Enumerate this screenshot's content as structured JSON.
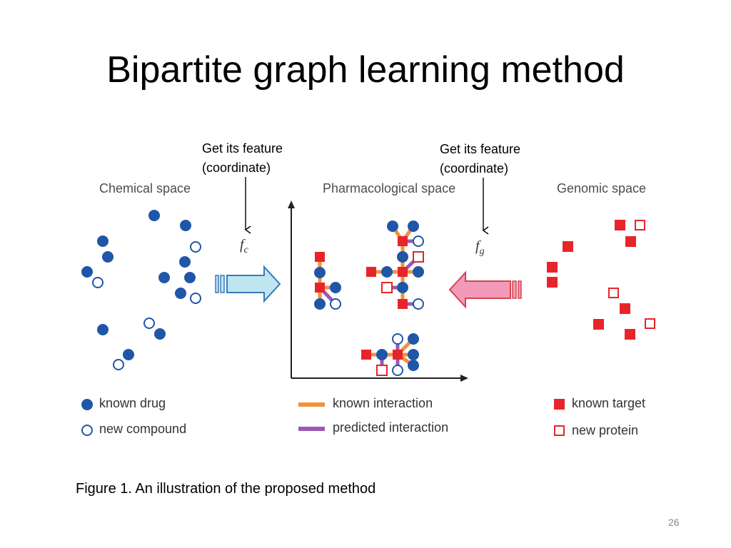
{
  "slide": {
    "title": "Bipartite graph learning method",
    "caption": "Figure 1. An illustration of the proposed method",
    "page_number": "26"
  },
  "annotations": {
    "left_line1": "Get its feature",
    "left_line2": "(coordinate)",
    "right_line1": "Get its feature",
    "right_line2": "(coordinate)"
  },
  "figure": {
    "chemical_space": "Chemical space",
    "pharmacological_space": "Pharmacological space",
    "genomic_space": "Genomic space",
    "fc_main": "f",
    "fc_sub": "c",
    "fg_main": "f",
    "fg_sub": "g"
  },
  "legend": {
    "known_drug": "known drug",
    "new_compound": "new compound",
    "known_interaction": "known interaction",
    "predicted_interaction": "predicted interaction",
    "known_target": "known target",
    "new_protein": "new protein"
  },
  "colors": {
    "drug_blue": "#1f56a8",
    "target_red": "#e8242a",
    "known_interaction_orange": "#f0923a",
    "predicted_interaction_purple": "#9b59b6",
    "arrow_left_fill": "#bfe6f0",
    "arrow_left_stroke": "#3a7ab8",
    "arrow_right_fill": "#f29ab8",
    "arrow_right_stroke": "#d8434f"
  }
}
